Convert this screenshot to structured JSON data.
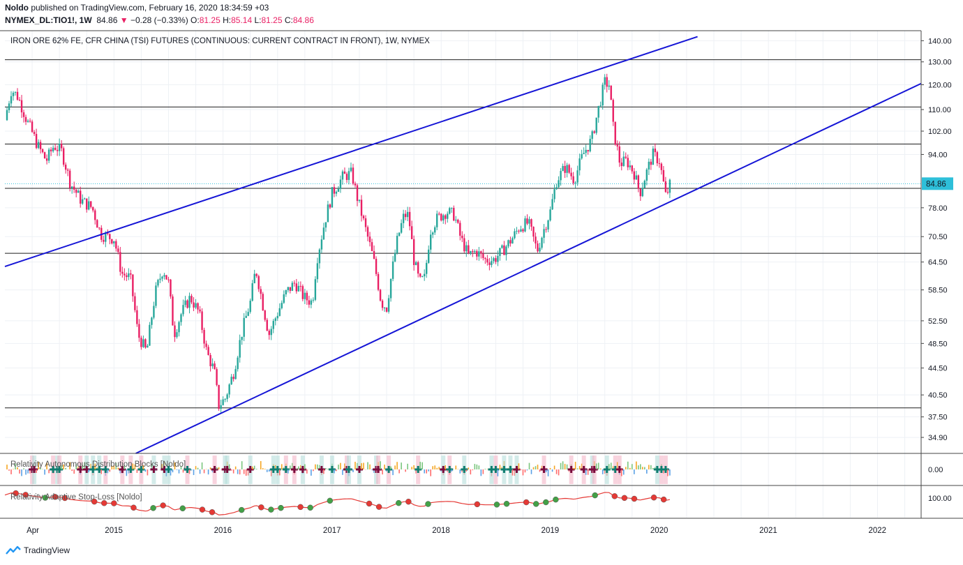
{
  "header": {
    "author": "Noldo",
    "published": " published on TradingView.com, February 16, 2020 18:34:59 +03",
    "symbol": "NYMEX_DL:TIO1!, 1W",
    "last": "84.86",
    "change": "−0.28 (−0.33%)",
    "o_label": "O:",
    "o": "81.25",
    "h_label": "H:",
    "h": "85.14",
    "l_label": "L:",
    "l": "81.25",
    "c_label": "C:",
    "c": "84.86"
  },
  "chart_title": "IRON ORE 62% FE, CFR CHINA (TSI) FUTURES (CONTINUOUS: CURRENT CONTRACT IN FRONT), 1W, NYMEX",
  "indicator1_label": "Relativity Autonomous Distribution Blocks [Noldo]",
  "indicator1_value": "0.00",
  "indicator2_label": "Relativity Adaptive Stop-Loss [Noldo]",
  "indicator2_value": "100.00",
  "footer_brand": "TradingView",
  "colors": {
    "up": "#26a69a",
    "down": "#e91e63",
    "trend": "#1515d6",
    "accent": "#2ebfd9"
  },
  "chart_data": {
    "type": "candlestick",
    "x_tick_labels": [
      "Apr",
      "2015",
      "2016",
      "2017",
      "2018",
      "2019",
      "2020",
      "2021",
      "2022"
    ],
    "x_ticks": [
      2014.25,
      2015.0,
      2016.0,
      2017.0,
      2018.0,
      2019.0,
      2020.0,
      2021.0,
      2022.0
    ],
    "y_scale": "log",
    "y_ticks": [
      34.9,
      37.5,
      40.5,
      44.5,
      48.5,
      52.5,
      58.5,
      64.5,
      70.5,
      78.0,
      84.86,
      94.0,
      102.0,
      110.0,
      120.0,
      130.0,
      140.0
    ],
    "y_tick_labels": [
      "34.90",
      "37.50",
      "40.50",
      "44.50",
      "48.50",
      "52.50",
      "58.50",
      "64.50",
      "70.50",
      "78.00",
      "",
      "94.00",
      "102.00",
      "110.00",
      "120.00",
      "130.00",
      "140.00"
    ],
    "ylim": [
      33,
      145
    ],
    "last_price": 84.86,
    "last_price_label": "84.86",
    "horizontal_levels": [
      131,
      111,
      97.5,
      83.5,
      66.5,
      38.7
    ],
    "trendlines": [
      {
        "from": [
          2014.0,
          63.5
        ],
        "to": [
          2020.35,
          142.0
        ]
      },
      {
        "from": [
          2015.2,
          33.0
        ],
        "to": [
          2022.4,
          120.5
        ]
      }
    ],
    "price_path": [
      [
        2014.0,
        106
      ],
      [
        2014.06,
        118
      ],
      [
        2014.12,
        115
      ],
      [
        2014.2,
        106
      ],
      [
        2014.3,
        97
      ],
      [
        2014.38,
        92
      ],
      [
        2014.45,
        97
      ],
      [
        2014.52,
        95
      ],
      [
        2014.6,
        85
      ],
      [
        2014.7,
        80
      ],
      [
        2014.8,
        78
      ],
      [
        2014.88,
        71
      ],
      [
        2015.0,
        70
      ],
      [
        2015.07,
        62
      ],
      [
        2015.15,
        61
      ],
      [
        2015.22,
        50
      ],
      [
        2015.3,
        47
      ],
      [
        2015.38,
        58
      ],
      [
        2015.45,
        63
      ],
      [
        2015.5,
        60
      ],
      [
        2015.55,
        50
      ],
      [
        2015.62,
        54
      ],
      [
        2015.7,
        57
      ],
      [
        2015.78,
        54
      ],
      [
        2015.85,
        47
      ],
      [
        2015.92,
        44
      ],
      [
        2015.96,
        39
      ],
      [
        2016.02,
        40
      ],
      [
        2016.1,
        44
      ],
      [
        2016.18,
        51
      ],
      [
        2016.25,
        56
      ],
      [
        2016.3,
        63
      ],
      [
        2016.36,
        56
      ],
      [
        2016.42,
        50
      ],
      [
        2016.5,
        54
      ],
      [
        2016.58,
        58
      ],
      [
        2016.66,
        60
      ],
      [
        2016.74,
        57
      ],
      [
        2016.82,
        56
      ],
      [
        2016.86,
        65
      ],
      [
        2016.93,
        74
      ],
      [
        2017.0,
        82
      ],
      [
        2017.1,
        87
      ],
      [
        2017.18,
        88
      ],
      [
        2017.22,
        82
      ],
      [
        2017.3,
        73
      ],
      [
        2017.38,
        65
      ],
      [
        2017.45,
        56
      ],
      [
        2017.5,
        55
      ],
      [
        2017.56,
        64
      ],
      [
        2017.6,
        70
      ],
      [
        2017.66,
        76
      ],
      [
        2017.7,
        76
      ],
      [
        2017.75,
        65
      ],
      [
        2017.8,
        60
      ],
      [
        2017.85,
        61
      ],
      [
        2017.9,
        72
      ],
      [
        2017.96,
        75
      ],
      [
        2018.05,
        77
      ],
      [
        2018.12,
        76
      ],
      [
        2018.18,
        70
      ],
      [
        2018.25,
        66
      ],
      [
        2018.32,
        67
      ],
      [
        2018.4,
        65
      ],
      [
        2018.48,
        65
      ],
      [
        2018.56,
        67
      ],
      [
        2018.65,
        70
      ],
      [
        2018.72,
        73
      ],
      [
        2018.8,
        74
      ],
      [
        2018.88,
        67
      ],
      [
        2018.95,
        73
      ],
      [
        2019.0,
        77
      ],
      [
        2019.06,
        86
      ],
      [
        2019.14,
        90
      ],
      [
        2019.22,
        86
      ],
      [
        2019.3,
        94
      ],
      [
        2019.38,
        99
      ],
      [
        2019.44,
        110
      ],
      [
        2019.5,
        121
      ],
      [
        2019.54,
        120
      ],
      [
        2019.58,
        102
      ],
      [
        2019.64,
        91
      ],
      [
        2019.7,
        92
      ],
      [
        2019.77,
        88
      ],
      [
        2019.82,
        82
      ],
      [
        2019.88,
        88
      ],
      [
        2019.94,
        94
      ],
      [
        2020.0,
        92
      ],
      [
        2020.06,
        81
      ],
      [
        2020.1,
        84.86
      ]
    ]
  }
}
